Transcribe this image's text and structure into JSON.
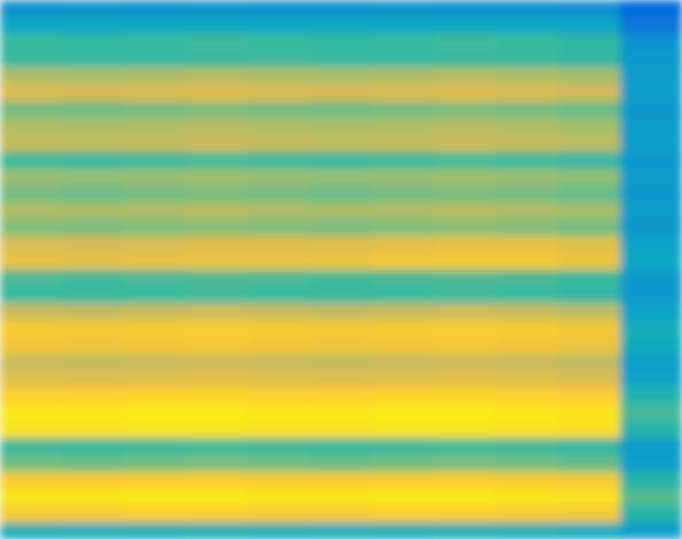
{
  "chart_data": {
    "type": "heatmap",
    "tick_labels": false,
    "zlim": [
      0,
      100
    ],
    "cells": [
      [
        30,
        31,
        30,
        31,
        30,
        30,
        31,
        30,
        30,
        29,
        15
      ],
      [
        38,
        38,
        39,
        38,
        38,
        39,
        38,
        38,
        38,
        37,
        20
      ],
      [
        50,
        49,
        50,
        51,
        50,
        49,
        50,
        51,
        50,
        48,
        30
      ],
      [
        50,
        50,
        49,
        50,
        51,
        50,
        49,
        50,
        50,
        48,
        32
      ],
      [
        68,
        67,
        68,
        69,
        68,
        67,
        68,
        69,
        68,
        66,
        33
      ],
      [
        76,
        75,
        76,
        77,
        76,
        75,
        76,
        77,
        76,
        74,
        34
      ],
      [
        58,
        57,
        58,
        59,
        58,
        57,
        58,
        59,
        58,
        56,
        32
      ],
      [
        68,
        67,
        68,
        69,
        68,
        67,
        68,
        69,
        68,
        66,
        33
      ],
      [
        72,
        71,
        72,
        73,
        72,
        71,
        72,
        73,
        72,
        70,
        34
      ],
      [
        50,
        49,
        50,
        51,
        50,
        49,
        50,
        51,
        50,
        48,
        32
      ],
      [
        64,
        63,
        64,
        65,
        64,
        63,
        64,
        65,
        64,
        62,
        33
      ],
      [
        58,
        57,
        58,
        59,
        58,
        57,
        58,
        59,
        58,
        56,
        32
      ],
      [
        68,
        67,
        68,
        69,
        68,
        67,
        68,
        69,
        68,
        66,
        33
      ],
      [
        60,
        59,
        60,
        61,
        60,
        59,
        60,
        61,
        60,
        58,
        32
      ],
      [
        76,
        75,
        76,
        77,
        77,
        77,
        79,
        80,
        80,
        78,
        36
      ],
      [
        80,
        79,
        80,
        81,
        81,
        82,
        84,
        85,
        85,
        82,
        38
      ],
      [
        52,
        51,
        52,
        53,
        52,
        51,
        52,
        53,
        52,
        50,
        32
      ],
      [
        50,
        49,
        50,
        51,
        50,
        49,
        50,
        51,
        50,
        48,
        32
      ],
      [
        72,
        71,
        72,
        73,
        72,
        71,
        72,
        73,
        72,
        70,
        36
      ],
      [
        86,
        85,
        86,
        87,
        86,
        85,
        86,
        87,
        86,
        84,
        42
      ],
      [
        84,
        83,
        84,
        85,
        84,
        83,
        84,
        85,
        84,
        82,
        40
      ],
      [
        72,
        71,
        72,
        73,
        72,
        71,
        72,
        73,
        72,
        70,
        34
      ],
      [
        78,
        77,
        78,
        79,
        78,
        77,
        78,
        79,
        78,
        76,
        36
      ],
      [
        88,
        88,
        89,
        89,
        88,
        88,
        89,
        89,
        88,
        87,
        45
      ],
      [
        95,
        95,
        96,
        96,
        95,
        95,
        96,
        96,
        95,
        94,
        52
      ],
      [
        93,
        93,
        94,
        94,
        93,
        93,
        94,
        94,
        93,
        92,
        46
      ],
      [
        50,
        49,
        50,
        51,
        50,
        49,
        50,
        51,
        50,
        48,
        33
      ],
      [
        58,
        57,
        58,
        59,
        58,
        57,
        58,
        59,
        58,
        56,
        34
      ],
      [
        86,
        86,
        87,
        87,
        86,
        86,
        87,
        87,
        86,
        85,
        46
      ],
      [
        94,
        94,
        95,
        95,
        94,
        94,
        95,
        95,
        94,
        93,
        54
      ],
      [
        86,
        86,
        87,
        87,
        86,
        86,
        87,
        87,
        86,
        85,
        46
      ],
      [
        42,
        41,
        42,
        43,
        42,
        41,
        42,
        43,
        42,
        40,
        34
      ]
    ]
  }
}
